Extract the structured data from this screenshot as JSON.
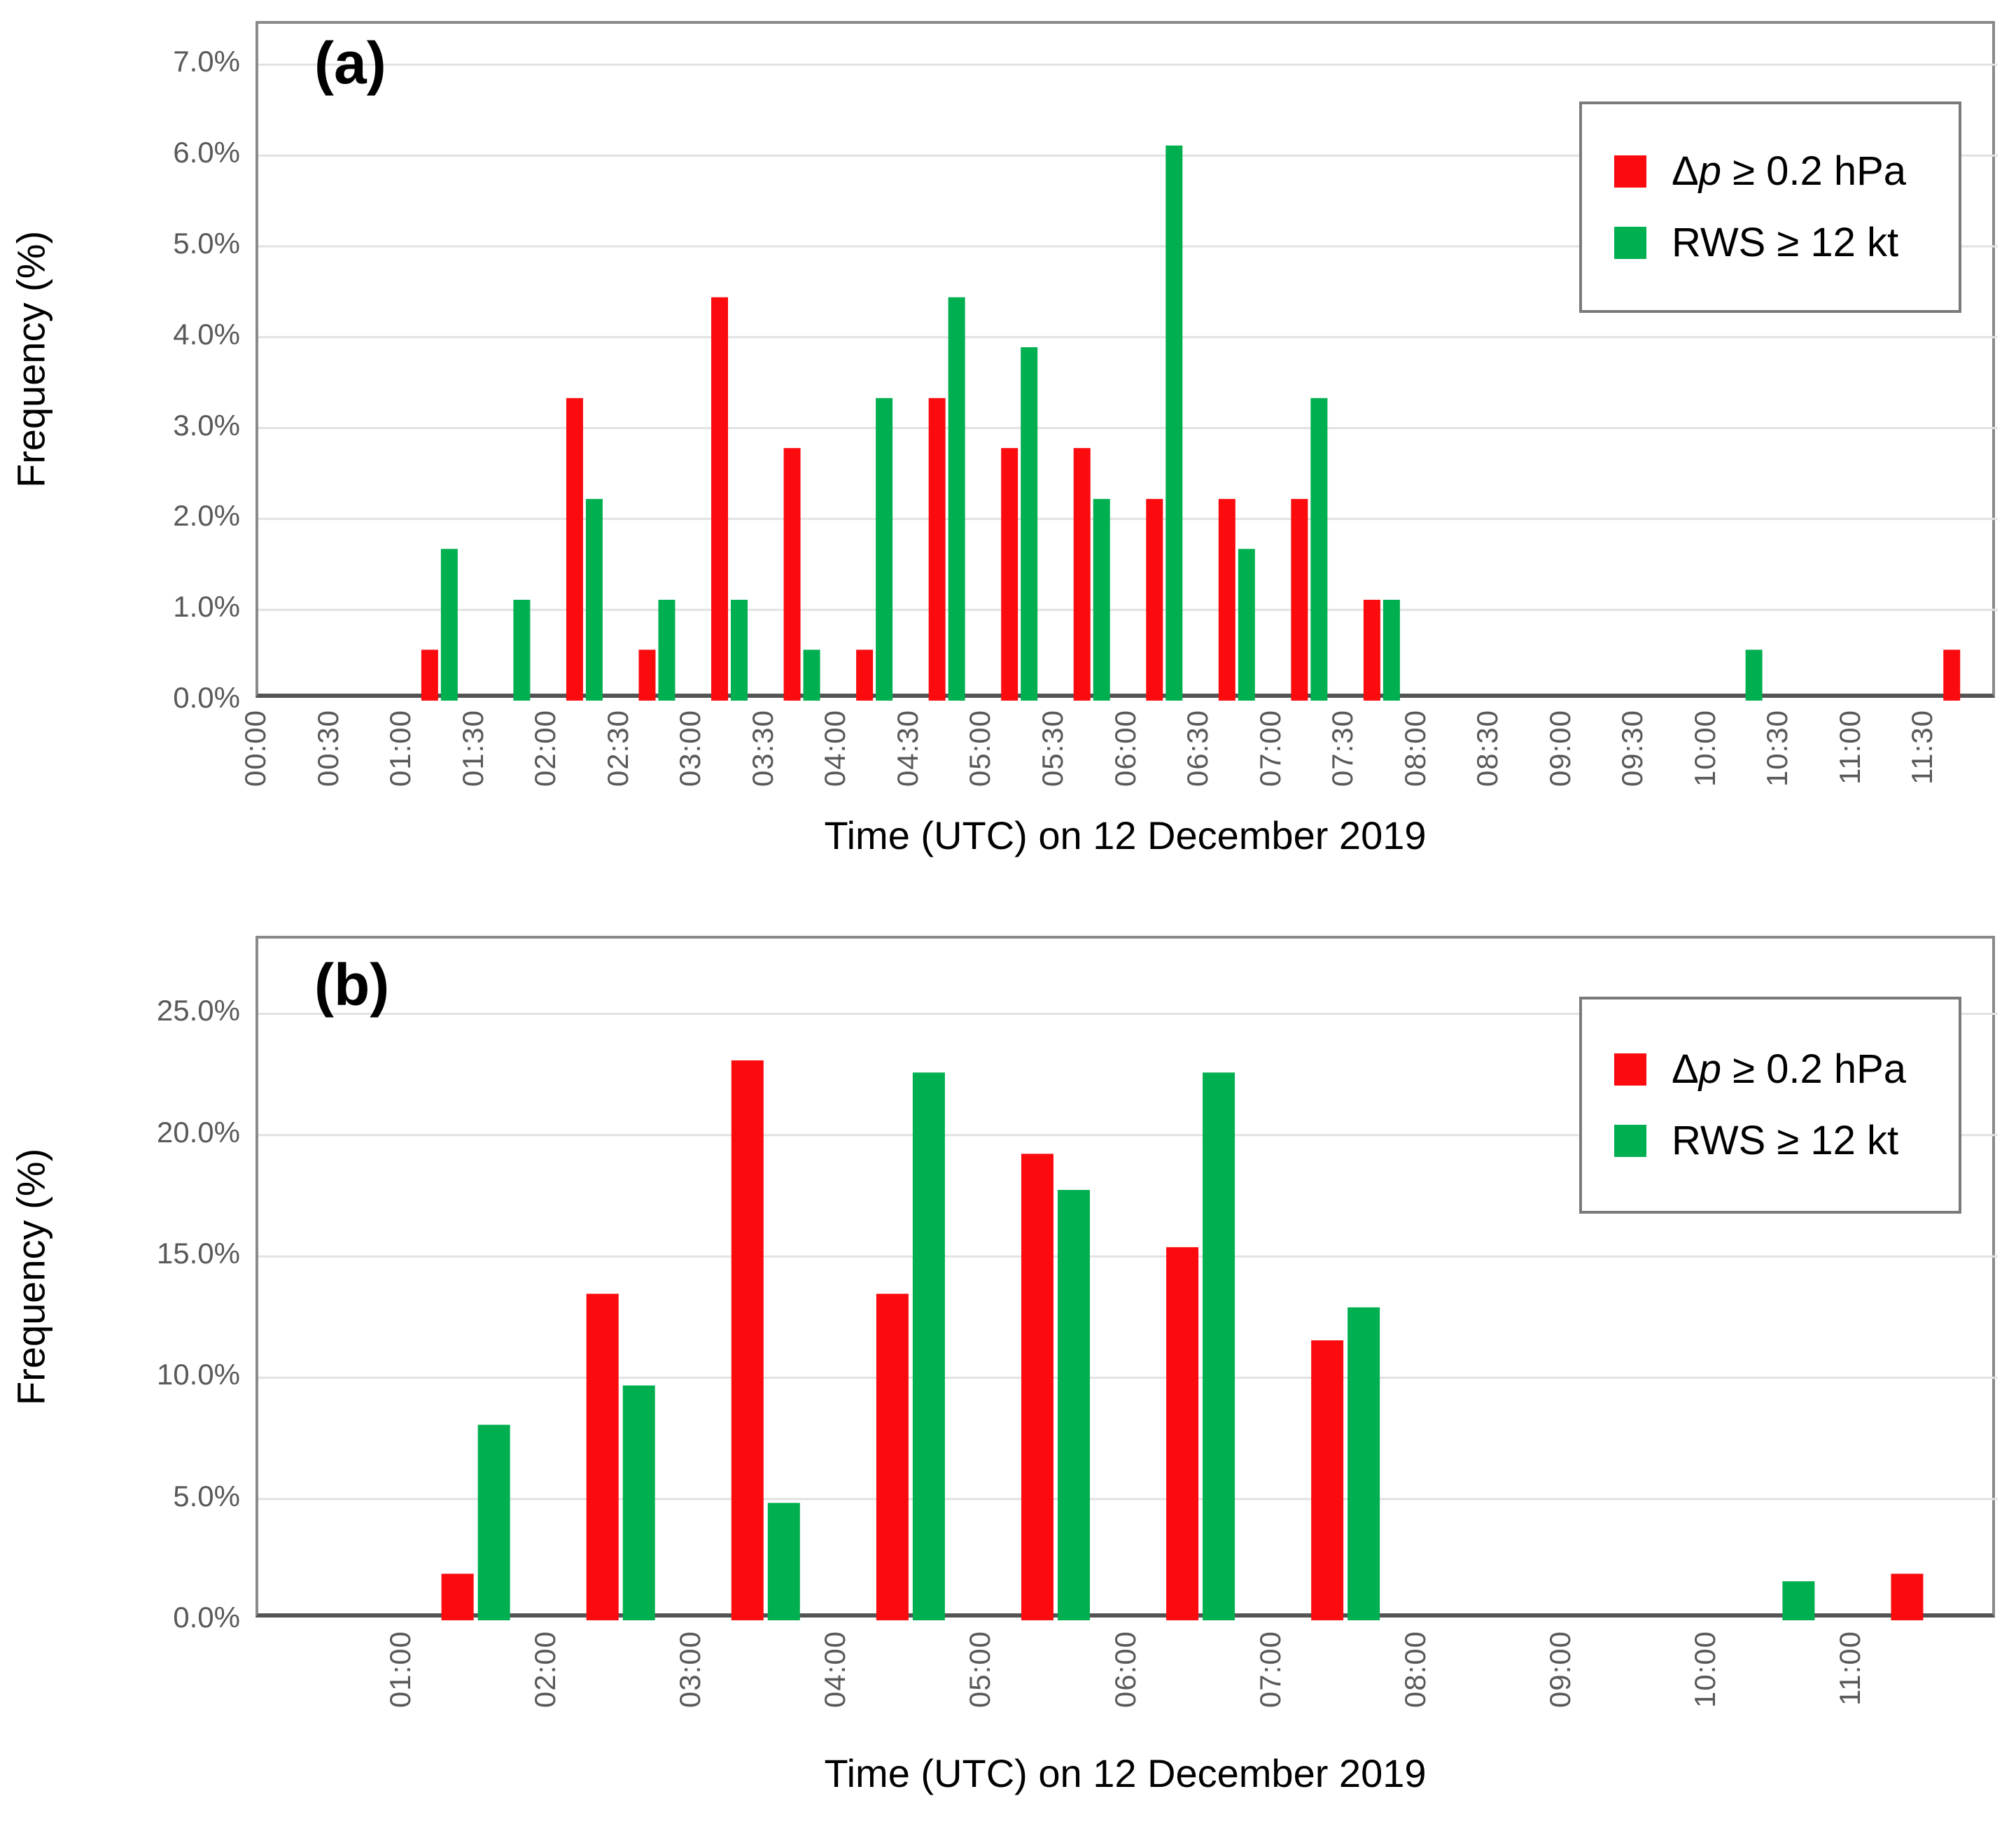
{
  "figure": {
    "description": "Two stacked clustered bar charts of exceedance frequency versus time",
    "background_color": "#ffffff",
    "gridline_color": "#e2e2e2",
    "plot_border_color": "#8a8a8a",
    "axis_line_color": "#545454",
    "tick_label_color": "#595959",
    "series_colors": {
      "dp": "#fb0a0e",
      "rws": "#00af50"
    }
  },
  "chart_data": [
    {
      "type": "bar",
      "panel": "(a)",
      "title": "",
      "xlabel": "Time (UTC) on 12 December 2019",
      "ylabel": "Frequency (%)",
      "x_axis_range": [
        "00:00",
        "12:00"
      ],
      "bin_minutes": 30,
      "bins": 24,
      "x_tick_labels": [
        "00:00",
        "00:30",
        "01:00",
        "01:30",
        "02:00",
        "02:30",
        "03:00",
        "03:30",
        "04:00",
        "04:30",
        "05:00",
        "05:30",
        "06:00",
        "06:30",
        "07:00",
        "07:30",
        "08:00",
        "08:30",
        "09:00",
        "09:30",
        "10:00",
        "10:30",
        "11:00",
        "11:30"
      ],
      "x_tick_start_boundary": 0,
      "y_tick_labels": [
        "0.0%",
        "1.0%",
        "2.0%",
        "3.0%",
        "4.0%",
        "5.0%",
        "6.0%",
        "7.0%"
      ],
      "y_tick_values": [
        0,
        1,
        2,
        3,
        4,
        5,
        6,
        7
      ],
      "ylim": [
        0,
        7.45
      ],
      "grid": true,
      "legend_position": "top-right",
      "categories": [
        "00:00",
        "00:30",
        "01:00",
        "01:30",
        "02:00",
        "02:30",
        "03:00",
        "03:30",
        "04:00",
        "04:30",
        "05:00",
        "05:30",
        "06:00",
        "06:30",
        "07:00",
        "07:30",
        "08:00",
        "08:30",
        "09:00",
        "09:30",
        "10:00",
        "10:30",
        "11:00",
        "11:30"
      ],
      "series": [
        {
          "name": "Δp ≥ 0.2 hPa",
          "label_parts": [
            [
              "Δ",
              false
            ],
            [
              "p",
              true
            ],
            [
              " ≥ 0.2 hPa",
              false
            ]
          ],
          "color": "#fb0a0e",
          "values": [
            0,
            0,
            0.56,
            0,
            3.33,
            0.56,
            4.44,
            2.78,
            0.56,
            3.33,
            2.78,
            2.78,
            2.22,
            2.22,
            2.22,
            1.11,
            0,
            0,
            0,
            0,
            0,
            0,
            0,
            0.56
          ]
        },
        {
          "name": "RWS ≥ 12 kt",
          "label_parts": [
            [
              "RWS ≥ 12 kt",
              false
            ]
          ],
          "color": "#00af50",
          "values": [
            0,
            0,
            1.67,
            1.11,
            2.22,
            1.11,
            1.11,
            0.56,
            3.33,
            4.44,
            3.89,
            2.22,
            6.11,
            1.67,
            3.33,
            1.11,
            0,
            0,
            0,
            0,
            0.56,
            0,
            0,
            0
          ]
        }
      ]
    },
    {
      "type": "bar",
      "panel": "(b)",
      "title": "",
      "xlabel": "Time (UTC) on 12 December 2019",
      "ylabel": "Frequency (%)",
      "x_axis_range": [
        "00:00",
        "12:00"
      ],
      "bin_minutes": 60,
      "bins": 12,
      "x_tick_labels": [
        "01:00",
        "02:00",
        "03:00",
        "04:00",
        "05:00",
        "06:00",
        "07:00",
        "08:00",
        "09:00",
        "10:00",
        "11:00"
      ],
      "x_tick_start_boundary": 1,
      "y_tick_labels": [
        "0.0%",
        "5.0%",
        "10.0%",
        "15.0%",
        "20.0%",
        "25.0%"
      ],
      "y_tick_values": [
        0,
        5,
        10,
        15,
        20,
        25
      ],
      "ylim": [
        0,
        28.1
      ],
      "grid": true,
      "legend_position": "top-right",
      "categories": [
        "00:00",
        "01:00",
        "02:00",
        "03:00",
        "04:00",
        "05:00",
        "06:00",
        "07:00",
        "08:00",
        "09:00",
        "10:00",
        "11:00"
      ],
      "series": [
        {
          "name": "Δp ≥ 0.2 hPa",
          "label_parts": [
            [
              "Δ",
              false
            ],
            [
              "p",
              true
            ],
            [
              " ≥ 0.2 hPa",
              false
            ]
          ],
          "color": "#fb0a0e",
          "values": [
            0,
            1.92,
            13.46,
            23.08,
            13.46,
            19.23,
            15.38,
            11.54,
            0,
            0,
            0,
            1.92
          ]
        },
        {
          "name": "RWS ≥ 12 kt",
          "label_parts": [
            [
              "RWS ≥ 12 kt",
              false
            ]
          ],
          "color": "#00af50",
          "values": [
            0,
            8.06,
            9.68,
            4.84,
            22.58,
            17.74,
            22.58,
            12.9,
            0,
            0,
            1.61,
            0
          ]
        }
      ]
    }
  ]
}
